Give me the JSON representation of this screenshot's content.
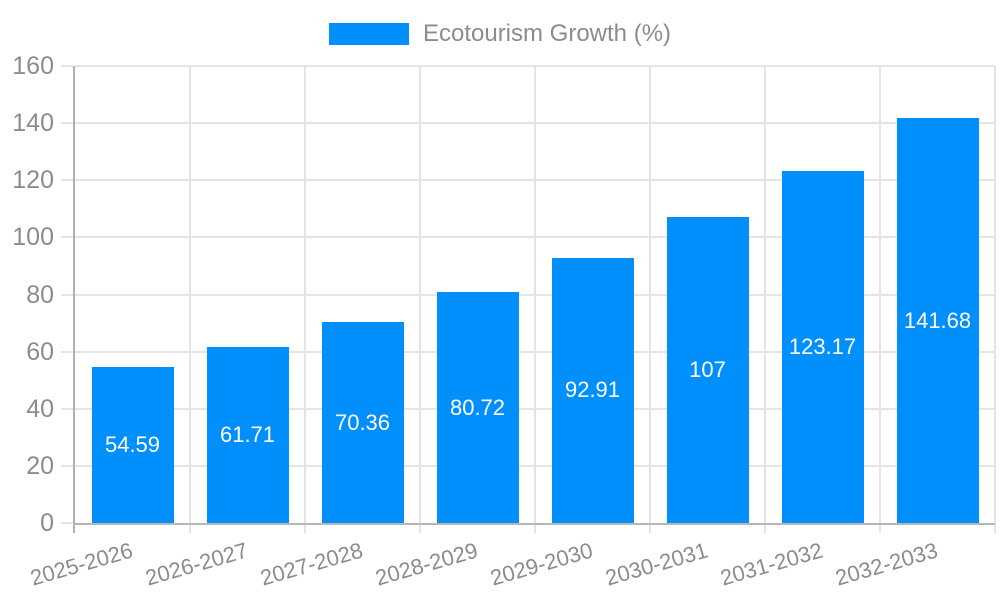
{
  "chart_data": {
    "type": "bar",
    "title": "Ecotourism Growth (%)",
    "categories": [
      "2025-2026",
      "2026-2027",
      "2027-2028",
      "2028-2029",
      "2029-2030",
      "2030-2031",
      "2031-2032",
      "2032-2033"
    ],
    "series": [
      {
        "name": "Ecotourism Growth (%)",
        "values": [
          54.59,
          61.71,
          70.36,
          80.72,
          92.91,
          107,
          123.17,
          141.68
        ],
        "data_labels": [
          "54.59",
          "61.71",
          "70.36",
          "80.72",
          "92.91",
          "107",
          "123.17",
          "141.68"
        ]
      }
    ],
    "xlabel": "",
    "ylabel": "",
    "ylim": [
      0,
      160
    ],
    "y_ticks": [
      0,
      20,
      40,
      60,
      80,
      100,
      120,
      140,
      160
    ],
    "grid": true,
    "legend_position": "top",
    "legend_label": "Ecotourism Growth (%)"
  },
  "style": {
    "bar_color": "#008FFB",
    "value_label_color": "#ffffff",
    "axis_label_color": "#8c8c8c",
    "legend_text_color": "#8c8c8c",
    "grid_color": "#e4e4e4",
    "y_axis_line_color": "#b0b0b0",
    "x_axis_line_color": "#b6b6b6",
    "background_color": "#ffffff"
  }
}
